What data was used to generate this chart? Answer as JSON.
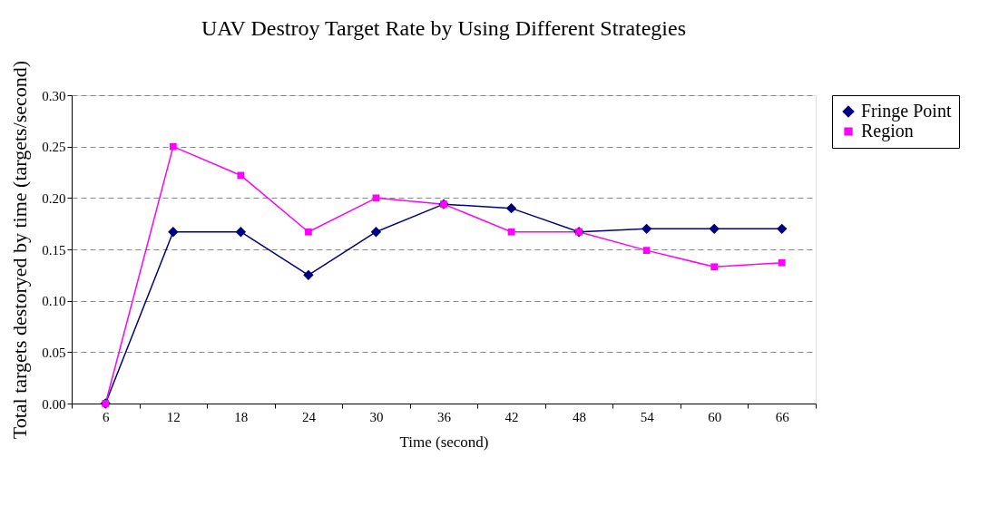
{
  "chart_data": {
    "type": "line",
    "title": "UAV Destroy Target Rate by Using Different Strategies",
    "xlabel": "Time (second)",
    "ylabel": "Total targets destoryed by time (targets/second)",
    "categories": [
      "6",
      "12",
      "18",
      "24",
      "30",
      "36",
      "42",
      "48",
      "54",
      "60",
      "66"
    ],
    "series": [
      {
        "name": "Fringe Point",
        "color": "#000080",
        "marker": "diamond",
        "values": [
          0,
          0.167,
          0.167,
          0.125,
          0.167,
          0.194,
          0.19,
          0.167,
          0.17,
          0.17,
          0.17
        ]
      },
      {
        "name": "Region",
        "color": "#ff00ff",
        "marker": "square",
        "values": [
          0,
          0.25,
          0.222,
          0.167,
          0.2,
          0.194,
          0.167,
          0.167,
          0.149,
          0.133,
          0.137
        ]
      }
    ],
    "ylim": [
      0,
      0.3
    ],
    "yticks": [
      {
        "value": 0,
        "label": "0.00"
      },
      {
        "value": 0.05,
        "label": "0.05"
      },
      {
        "value": 0.1,
        "label": "0.10"
      },
      {
        "value": 0.15,
        "label": "0.15"
      },
      {
        "value": 0.2,
        "label": "0.20"
      },
      {
        "value": 0.25,
        "label": "0.25"
      },
      {
        "value": 0.3,
        "label": "0.30"
      }
    ],
    "grid": "y",
    "legend": "right",
    "line_style": "solid"
  }
}
